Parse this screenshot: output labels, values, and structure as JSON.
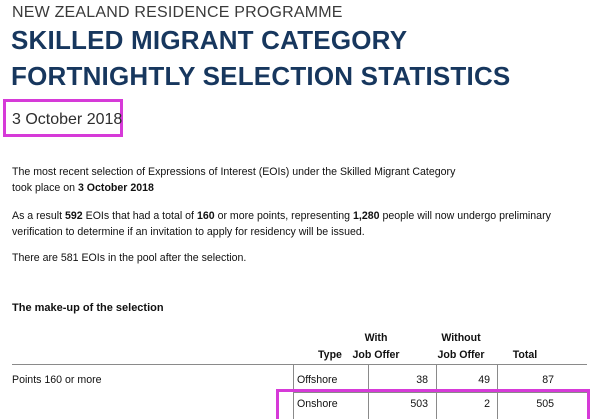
{
  "header": {
    "programme": "NEW ZEALAND RESIDENCE PROGRAMME",
    "title_line1": "SKILLED MIGRANT CATEGORY",
    "title_line2": "FORTNIGHTLY SELECTION STATISTICS",
    "date": "3 October 2018"
  },
  "paragraphs": {
    "p1_line1": "The most recent selection of Expressions of Interest (EOIs) under the Skilled Migrant Category",
    "p1_line2_prefix": "took place on ",
    "p1_line2_date": "3 October 2018",
    "p2_a": "As a result ",
    "p2_eois": "592",
    "p2_b": " EOIs that had a total of ",
    "p2_points": "160",
    "p2_c": " or more points, representing ",
    "p2_people": "1,280",
    "p2_d": " people will now undergo preliminary",
    "p2_line2": "verification to determine if an invitation to apply for residency will be issued.",
    "p3": "There are 581 EOIs in the pool after the selection."
  },
  "section": {
    "title": "The make-up of the selection"
  },
  "table": {
    "headers": {
      "type": "Type",
      "with_line1": "With",
      "with_line2": "Job Offer",
      "without_line1": "Without",
      "without_line2": "Job Offer",
      "total": "Total"
    },
    "group_label": "Points 160 or more",
    "rows": [
      {
        "type": "Offshore",
        "with": "38",
        "without": "49",
        "total": "87"
      },
      {
        "type": "Onshore",
        "with": "503",
        "without": "2",
        "total": "505"
      }
    ]
  },
  "colors": {
    "title": "#17375e",
    "highlight": "#d63ad8"
  }
}
